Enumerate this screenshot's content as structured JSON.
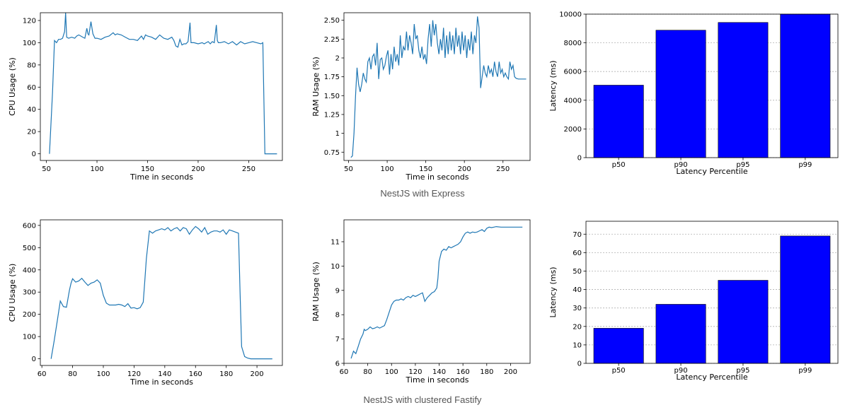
{
  "captions": {
    "row1": "NestJS with Express",
    "row2": "NestJS with clustered Fastify"
  },
  "colors": {
    "line": "#1f77b4",
    "bar": "#0000ff",
    "bar_edge": "#000000",
    "grid": "#b0b0b0"
  },
  "chart_data": [
    {
      "id": "express-cpu",
      "type": "line",
      "xlabel": "Time in seconds",
      "ylabel": "CPU Usage (%)",
      "xlim": [
        44,
        284
      ],
      "ylim": [
        -6,
        127
      ],
      "xticks": [
        50,
        100,
        150,
        200,
        250
      ],
      "yticks": [
        0,
        20,
        40,
        60,
        80,
        100,
        120
      ],
      "x": [
        53,
        56,
        58,
        60,
        62,
        64,
        66,
        68,
        69,
        70,
        72,
        75,
        78,
        80,
        82,
        84,
        86,
        88,
        90,
        91,
        92,
        94,
        96,
        98,
        100,
        104,
        108,
        112,
        116,
        118,
        120,
        124,
        128,
        132,
        136,
        140,
        144,
        146,
        148,
        150,
        154,
        158,
        162,
        166,
        170,
        174,
        176,
        178,
        180,
        182,
        184,
        186,
        188,
        190,
        192,
        193,
        194,
        196,
        200,
        204,
        206,
        208,
        210,
        212,
        214,
        216,
        218,
        219,
        220,
        222,
        226,
        230,
        234,
        238,
        242,
        246,
        250,
        254,
        258,
        262,
        264,
        266,
        270,
        275,
        278
      ],
      "y": [
        0,
        55,
        102,
        100,
        103,
        103,
        104,
        110,
        127,
        105,
        104,
        105,
        104,
        106,
        107,
        106,
        105,
        104,
        113,
        108,
        107,
        119,
        108,
        104,
        104,
        103,
        105,
        106,
        109,
        107,
        108,
        107,
        105,
        103,
        103,
        102,
        106,
        103,
        107,
        106,
        105,
        103,
        107,
        104,
        103,
        105,
        102,
        97,
        96,
        103,
        98,
        99,
        99,
        101,
        118,
        100,
        100,
        100,
        99,
        100,
        99,
        100,
        101,
        99,
        101,
        100,
        116,
        102,
        100,
        100,
        101,
        99,
        101,
        98,
        101,
        99,
        100,
        101,
        100,
        99,
        100,
        0,
        0,
        0,
        0
      ]
    },
    {
      "id": "express-ram",
      "type": "line",
      "xlabel": "Time in seconds",
      "ylabel": "RAM Usage (%)",
      "xlim": [
        44,
        286
      ],
      "ylim": [
        0.64,
        2.6
      ],
      "xticks": [
        50,
        100,
        150,
        200,
        250
      ],
      "yticks": [
        0.75,
        1.0,
        1.25,
        1.5,
        1.75,
        2.0,
        2.25,
        2.5
      ],
      "x": [
        53,
        55,
        57,
        59,
        61,
        63,
        65,
        67,
        69,
        71,
        73,
        75,
        77,
        79,
        81,
        83,
        85,
        87,
        89,
        91,
        93,
        95,
        97,
        99,
        101,
        103,
        105,
        107,
        109,
        111,
        113,
        115,
        117,
        119,
        121,
        123,
        125,
        127,
        129,
        131,
        133,
        135,
        137,
        139,
        141,
        143,
        145,
        147,
        149,
        151,
        153,
        155,
        157,
        159,
        161,
        163,
        165,
        167,
        169,
        171,
        173,
        175,
        177,
        179,
        181,
        183,
        185,
        187,
        189,
        191,
        193,
        195,
        197,
        199,
        201,
        203,
        205,
        207,
        209,
        211,
        213,
        215,
        217,
        219,
        221,
        223,
        225,
        227,
        229,
        231,
        233,
        235,
        237,
        239,
        241,
        243,
        245,
        247,
        249,
        251,
        253,
        255,
        257,
        259,
        261,
        263,
        265,
        267,
        270,
        275,
        280
      ],
      "y": [
        0.68,
        0.7,
        1.0,
        1.5,
        1.87,
        1.65,
        1.55,
        1.65,
        1.8,
        1.72,
        1.68,
        1.95,
        2.0,
        1.85,
        2.02,
        2.05,
        1.9,
        2.2,
        1.72,
        1.98,
        2.0,
        1.85,
        1.9,
        2.02,
        2.1,
        1.78,
        2.05,
        1.85,
        2.15,
        1.95,
        2.05,
        1.9,
        2.3,
        2.0,
        2.15,
        2.1,
        2.35,
        2.1,
        2.3,
        2.2,
        2.05,
        2.45,
        2.25,
        2.3,
        2.1,
        2.0,
        2.15,
        1.98,
        2.05,
        1.92,
        2.25,
        2.45,
        2.15,
        2.5,
        2.3,
        2.45,
        2.2,
        2.05,
        2.25,
        2.1,
        2.4,
        2.0,
        2.3,
        2.05,
        2.35,
        2.1,
        2.3,
        2.05,
        2.4,
        2.15,
        2.3,
        2.05,
        2.35,
        2.1,
        2.3,
        2.0,
        2.25,
        2.1,
        2.35,
        2.05,
        2.3,
        2.2,
        2.55,
        2.4,
        1.6,
        1.75,
        1.9,
        1.8,
        1.75,
        1.9,
        1.8,
        1.85,
        1.75,
        1.95,
        1.82,
        1.75,
        1.95,
        1.8,
        1.85,
        1.75,
        1.8,
        1.75,
        1.72,
        1.95,
        1.85,
        1.9,
        1.75,
        1.73,
        1.72,
        1.72,
        1.72
      ]
    },
    {
      "id": "express-latency",
      "type": "bar",
      "xlabel": "Latency Percentile",
      "ylabel": "Latency (ms)",
      "categories": [
        "p50",
        "p90",
        "p95",
        "p99"
      ],
      "values": [
        5050,
        8880,
        9420,
        10000
      ],
      "ylim": [
        0,
        10000
      ],
      "yticks": [
        0,
        2000,
        4000,
        6000,
        8000,
        10000
      ]
    },
    {
      "id": "fastify-cpu",
      "type": "line",
      "xlabel": "Time in seconds",
      "ylabel": "CPU Usage (%)",
      "xlim": [
        59,
        217
      ],
      "ylim": [
        -30,
        625
      ],
      "xticks": [
        60,
        80,
        100,
        120,
        140,
        160,
        180,
        200
      ],
      "yticks": [
        0,
        100,
        200,
        300,
        400,
        500,
        600
      ],
      "x": [
        66,
        68,
        70,
        72,
        74,
        76,
        78,
        79,
        80,
        82,
        84,
        86,
        88,
        90,
        92,
        94,
        96,
        98,
        100,
        102,
        104,
        106,
        108,
        110,
        112,
        114,
        116,
        118,
        120,
        122,
        124,
        126,
        127,
        128,
        130,
        132,
        134,
        136,
        138,
        140,
        142,
        144,
        146,
        148,
        150,
        152,
        154,
        156,
        158,
        160,
        162,
        164,
        166,
        168,
        170,
        172,
        174,
        176,
        178,
        180,
        182,
        184,
        186,
        188,
        189,
        190,
        192,
        194,
        196,
        200,
        205,
        210
      ],
      "y": [
        0,
        80,
        170,
        260,
        235,
        232,
        310,
        340,
        360,
        345,
        350,
        362,
        345,
        330,
        340,
        345,
        355,
        340,
        285,
        250,
        242,
        242,
        242,
        245,
        242,
        235,
        248,
        228,
        230,
        225,
        230,
        255,
        350,
        450,
        575,
        565,
        575,
        580,
        585,
        580,
        590,
        575,
        585,
        590,
        575,
        590,
        585,
        560,
        580,
        595,
        585,
        570,
        590,
        560,
        570,
        575,
        575,
        570,
        580,
        560,
        580,
        575,
        570,
        565,
        300,
        55,
        10,
        3,
        0,
        0,
        0,
        0
      ]
    },
    {
      "id": "fastify-ram",
      "type": "line",
      "xlabel": "Time in seconds",
      "ylabel": "RAM Usage (%)",
      "xlim": [
        60,
        217
      ],
      "ylim": [
        6.0,
        11.9
      ],
      "xticks": [
        60,
        80,
        100,
        120,
        140,
        160,
        180,
        200
      ],
      "yticks": [
        6,
        7,
        8,
        9,
        10,
        11
      ],
      "x": [
        66,
        68,
        70,
        72,
        74,
        76,
        77,
        78,
        80,
        82,
        84,
        86,
        88,
        90,
        92,
        94,
        96,
        98,
        100,
        102,
        104,
        106,
        108,
        110,
        112,
        114,
        116,
        118,
        120,
        122,
        124,
        126,
        128,
        130,
        132,
        134,
        136,
        138,
        139,
        140,
        142,
        144,
        146,
        148,
        150,
        152,
        154,
        156,
        158,
        160,
        162,
        164,
        166,
        168,
        170,
        172,
        174,
        176,
        178,
        180,
        182,
        184,
        186,
        188,
        192,
        200,
        210
      ],
      "y": [
        6.2,
        6.5,
        6.4,
        6.7,
        7.0,
        7.2,
        7.4,
        7.35,
        7.4,
        7.5,
        7.42,
        7.45,
        7.5,
        7.45,
        7.5,
        7.55,
        7.8,
        8.1,
        8.4,
        8.55,
        8.6,
        8.6,
        8.65,
        8.6,
        8.7,
        8.75,
        8.7,
        8.8,
        8.75,
        8.8,
        8.85,
        8.9,
        8.55,
        8.7,
        8.8,
        8.9,
        8.95,
        9.1,
        9.5,
        10.2,
        10.6,
        10.7,
        10.65,
        10.8,
        10.75,
        10.8,
        10.85,
        10.9,
        11.0,
        11.2,
        11.35,
        11.4,
        11.35,
        11.4,
        11.38,
        11.4,
        11.45,
        11.5,
        11.42,
        11.55,
        11.6,
        11.58,
        11.6,
        11.62,
        11.6,
        11.6,
        11.6
      ]
    },
    {
      "id": "fastify-latency",
      "type": "bar",
      "xlabel": "Latency Percentile",
      "ylabel": "Latency (ms)",
      "categories": [
        "p50",
        "p90",
        "p95",
        "p99"
      ],
      "values": [
        19,
        32,
        45,
        69
      ],
      "ylim": [
        0,
        77
      ],
      "yticks": [
        0,
        10,
        20,
        30,
        40,
        50,
        60,
        70
      ]
    }
  ]
}
